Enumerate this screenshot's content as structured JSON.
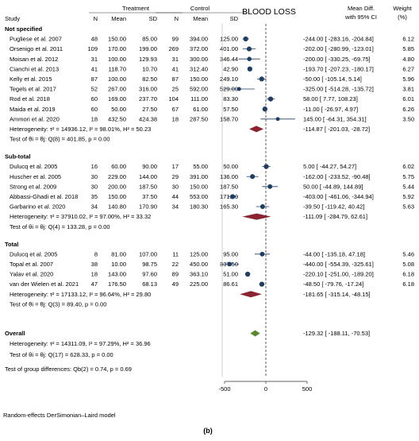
{
  "header": {
    "study": "Study",
    "treatment": "Treatment",
    "control": "Control",
    "n": "N",
    "mean": "Mean",
    "sd": "SD",
    "plot_title": "BLOOD LOSS",
    "effect_line1": "Mean Diff.",
    "effect_line2": "with 95% CI",
    "weight_line1": "Weight",
    "weight_line2": "(%)"
  },
  "footer": {
    "overall_label": "Overall",
    "overall_effect": "-129.32 [ -188.11,   -70.53]",
    "overall_het": "Heterogeneity: τ² = 14311.09, I² = 97.29%, H² = 36.96",
    "overall_test": "Test of θi = θj: Q(17) = 628.33, p = 0.00",
    "group_diff": "Test of group differences: Qb(2) = 0.74, p = 0.69",
    "model_note": "Random-effects DerSimonian–Laird model",
    "panel_label": "(b)"
  },
  "colors": {
    "marker": "#1f3e63",
    "diamond_group": "#8b2331",
    "diamond_overall": "#5a8a2e",
    "axis": "#333333"
  },
  "chart_data": {
    "type": "forest",
    "xlim": [
      -500,
      500
    ],
    "xticks": [
      -500,
      0,
      500
    ],
    "reference_line": 0,
    "groups": [
      {
        "name": "Not specified",
        "studies": [
          {
            "label": "Pugliese et al. 2007",
            "tn": "48",
            "tmean": "150.00",
            "tsd": "85.00",
            "cn": "99",
            "cmean": "394.00",
            "csd": "125.00",
            "md": -244.0,
            "lo": -283.16,
            "hi": -204.84,
            "md_text": "-244.00 [ -283.16,  -204.84]",
            "weight": "6.12"
          },
          {
            "label": "Orsenigo et al. 2011",
            "tn": "109",
            "tmean": "170.00",
            "tsd": "199.00",
            "cn": "269",
            "cmean": "372.00",
            "csd": "401.00",
            "md": -202.0,
            "lo": -280.99,
            "hi": -123.01,
            "md_text": "-202.00 [ -280.99,  -123.01]",
            "weight": "5.85"
          },
          {
            "label": "Moisan et al. 2012",
            "tn": "31",
            "tmean": "100.00",
            "tsd": "129.93",
            "cn": "31",
            "cmean": "300.00",
            "csd": "346.44",
            "md": -200.0,
            "lo": -330.25,
            "hi": -69.75,
            "md_text": "-200.00 [ -330.25,   -69.75]",
            "weight": "4.80"
          },
          {
            "label": "Cianchi et al. 2013",
            "tn": "41",
            "tmean": "118.70",
            "tsd": "10.70",
            "cn": "41",
            "cmean": "312.40",
            "csd": "42.90",
            "md": -193.7,
            "lo": -207.23,
            "hi": -180.17,
            "md_text": "-193.70 [ -207.23,  -180.17]",
            "weight": "6.27"
          },
          {
            "label": "Kelly et al. 2015",
            "tn": "87",
            "tmean": "100.00",
            "tsd": "82.50",
            "cn": "87",
            "cmean": "150.00",
            "csd": "249.10",
            "md": -50.0,
            "lo": -105.14,
            "hi": 5.14,
            "md_text": "-50.00 [ -105.14,     5.14]",
            "weight": "5.96"
          },
          {
            "label": "Tegels et al. 2017",
            "tn": "52",
            "tmean": "267.00",
            "tsd": "316.00",
            "cn": "25",
            "cmean": "592.00",
            "csd": "529.00",
            "md": -325.0,
            "lo": -514.28,
            "hi": -135.72,
            "md_text": "-325.00 [ -514.28,  -135.72]",
            "weight": "3.81"
          },
          {
            "label": "Rod et al. 2018",
            "tn": "60",
            "tmean": "169.00",
            "tsd": "237.70",
            "cn": "104",
            "cmean": "111.00",
            "csd": "83.30",
            "md": 58.0,
            "lo": 7.77,
            "hi": 108.23,
            "md_text": "58.00 [     7.77,   108.23]",
            "weight": "6.01"
          },
          {
            "label": "Maida et al. 2019",
            "tn": "60",
            "tmean": "50.00",
            "tsd": "27.50",
            "cn": "67",
            "cmean": "61.00",
            "csd": "57.50",
            "md": -11.0,
            "lo": -26.97,
            "hi": 4.97,
            "md_text": "-11.00 [   -26.97,     4.97]",
            "weight": "6.26"
          },
          {
            "label": "Ammori et al. 2020",
            "tn": "18",
            "tmean": "432.50",
            "tsd": "424.38",
            "cn": "18",
            "cmean": "287.50",
            "csd": "158.70",
            "md": 145.0,
            "lo": -64.31,
            "hi": 354.31,
            "md_text": "145.00 [   -64.31,   354.31]",
            "weight": "3.50"
          }
        ],
        "het": "Heterogeneity: τ² = 14936.12, I² = 98.01%, H² = 50.23",
        "pooled": {
          "md": -114.87,
          "lo": -201.03,
          "hi": -28.72,
          "md_text": "-114.87 [ -201.03,   -28.72]"
        },
        "test": "Test of θi = θj: Q(8) = 401.85, p = 0.00"
      },
      {
        "name": "Sub-total",
        "studies": [
          {
            "label": "Dulucq et al. 2005",
            "tn": "16",
            "tmean": "60.00",
            "tsd": "90.00",
            "cn": "17",
            "cmean": "55.00",
            "csd": "50.00",
            "md": 5.0,
            "lo": -44.27,
            "hi": 54.27,
            "md_text": "5.00 [   -44.27,    54.27]",
            "weight": "6.02"
          },
          {
            "label": "Huscher et al. 2005",
            "tn": "30",
            "tmean": "229.00",
            "tsd": "144.00",
            "cn": "29",
            "cmean": "391.00",
            "csd": "136.00",
            "md": -162.0,
            "lo": -233.52,
            "hi": -90.48,
            "md_text": "-162.00 [ -233.52,   -90.48]",
            "weight": "5.75"
          },
          {
            "label": "Strong et al. 2009",
            "tn": "30",
            "tmean": "200.00",
            "tsd": "187.50",
            "cn": "30",
            "cmean": "150.00",
            "csd": "187.50",
            "md": 50.0,
            "lo": -44.89,
            "hi": 144.89,
            "md_text": "50.00 [   -44.89,   144.89]",
            "weight": "5.44"
          },
          {
            "label": "Abbassi-Ghadi et al. 2018",
            "tn": "35",
            "tmean": "150.00",
            "tsd": "37.50",
            "cn": "44",
            "cmean": "553.00",
            "csd": "171.80",
            "md": -403.0,
            "lo": -461.06,
            "hi": -344.94,
            "md_text": "-403.00 [ -461.06,  -344.94]",
            "weight": "5.92"
          },
          {
            "label": "Garbarino et al. 2020",
            "tn": "34",
            "tmean": "140.80",
            "tsd": "170.90",
            "cn": "34",
            "cmean": "180.30",
            "csd": "165.30",
            "md": -39.5,
            "lo": -119.42,
            "hi": 40.42,
            "md_text": "-39.50 [ -119.42,    40.42]",
            "weight": "5.63"
          }
        ],
        "het": "Heterogeneity: τ² = 37910.02, I² = 97.00%, H² = 33.32",
        "pooled": {
          "md": -111.09,
          "lo": -284.79,
          "hi": 62.61,
          "md_text": "-111.09 [ -284.79,    62.61]"
        },
        "test": "Test of θi = θj: Q(4) = 133.28, p = 0.00"
      },
      {
        "name": "Total",
        "studies": [
          {
            "label": "Dulucq et al. 2005",
            "tn": "8",
            "tmean": "81.00",
            "tsd": "107.00",
            "cn": "11",
            "cmean": "125.00",
            "csd": "95.00",
            "md": -44.0,
            "lo": -135.18,
            "hi": 47.18,
            "md_text": "-44.00 [ -135.18,    47.18]",
            "weight": "5.46"
          },
          {
            "label": "Topal et al. 2007",
            "tn": "38",
            "tmean": "10.00",
            "tsd": "98.75",
            "cn": "22",
            "cmean": "450.00",
            "csd": "337.50",
            "md": -440.0,
            "lo": -554.39,
            "hi": -325.61,
            "md_text": "-440.00 [ -554.39,  -325.61]",
            "weight": "5.08"
          },
          {
            "label": "Yalav et al. 2020",
            "tn": "18",
            "tmean": "143.00",
            "tsd": "97.60",
            "cn": "89",
            "cmean": "363.10",
            "csd": "51.00",
            "md": -220.1,
            "lo": -251.0,
            "hi": -189.2,
            "md_text": "-220.10 [ -251.00,  -189.20]",
            "weight": "6.18"
          },
          {
            "label": "van der Wielen et al. 2021",
            "tn": "47",
            "tmean": "176.50",
            "tsd": "68.13",
            "cn": "49",
            "cmean": "225.00",
            "csd": "86.61",
            "md": -48.5,
            "lo": -79.76,
            "hi": -17.24,
            "md_text": "-48.50 [   -79.76,   -17.24]",
            "weight": "6.18"
          }
        ],
        "het": "Heterogeneity: τ² = 17133.12, I² = 96.64%, H² = 29.80",
        "pooled": {
          "md": -181.65,
          "lo": -315.14,
          "hi": -48.15,
          "md_text": "-181.65 [ -315.14,   -48.15]"
        },
        "test": "Test of θi = θj: Q(3) = 89.40, p = 0.00"
      }
    ],
    "overall": {
      "md": -129.32,
      "lo": -188.11,
      "hi": -70.53
    }
  }
}
